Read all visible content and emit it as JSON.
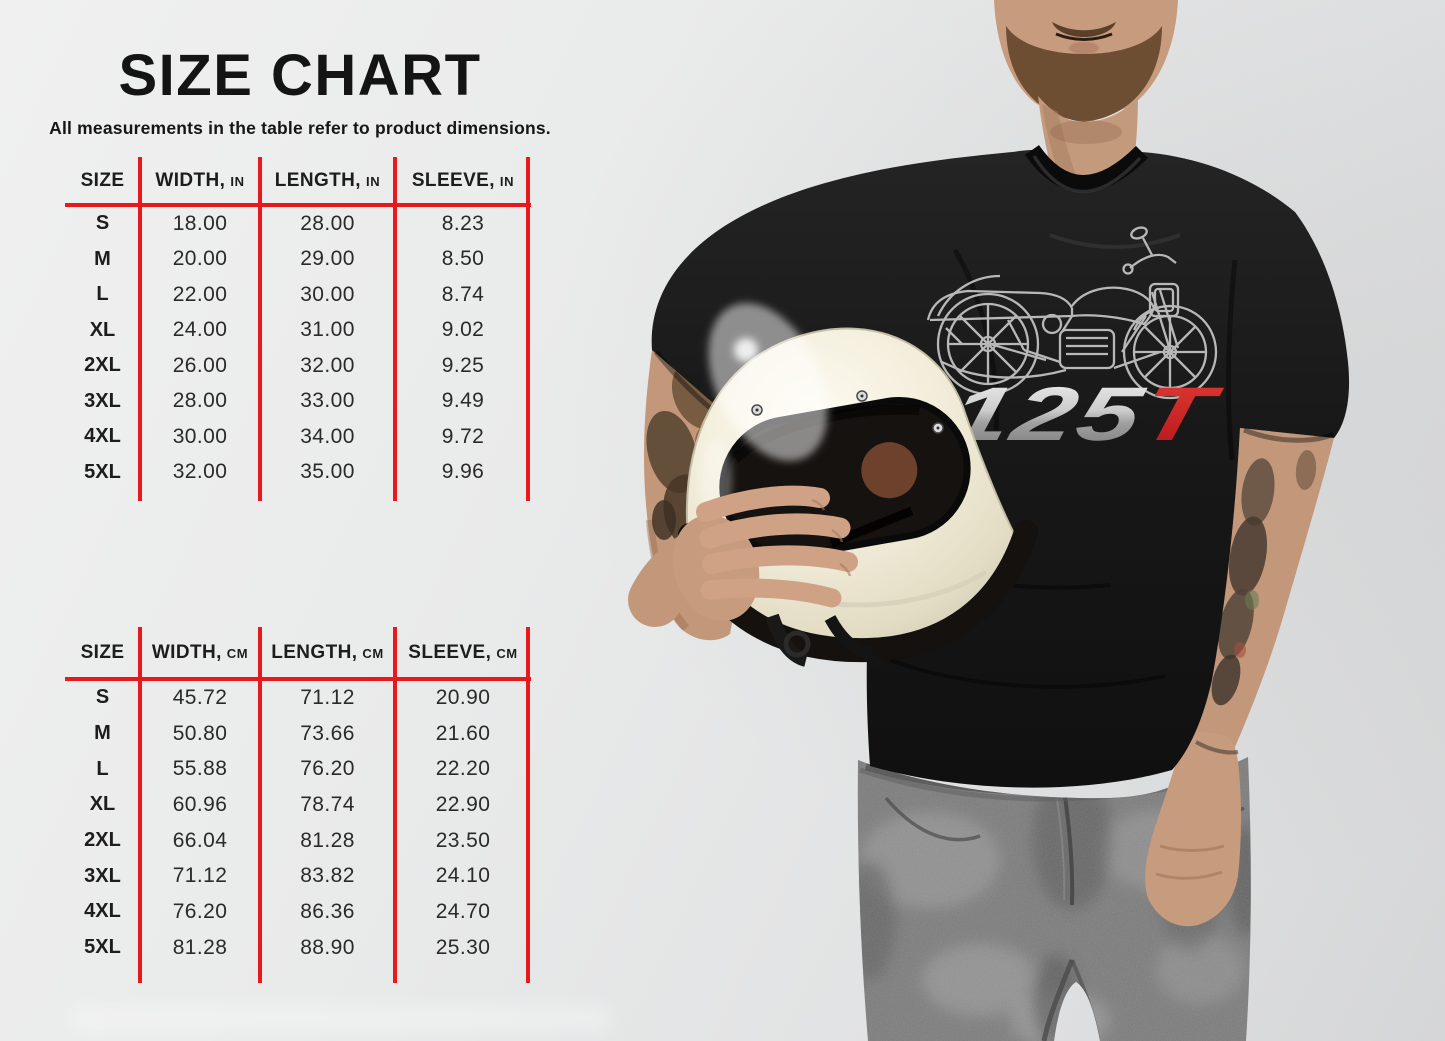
{
  "header": {
    "title": "SIZE CHART",
    "subtitle": "All measurements in the table refer to product dimensions."
  },
  "colors": {
    "accent_red": "#e8191d",
    "background": "#e7e8e8",
    "text": "#1d1d1d",
    "shirt_black": "#1a1a1a",
    "helmet_cream": "#f1ecd9",
    "graphic_silver": "#d8d8d8",
    "graphic_red": "#d41f26"
  },
  "tables": [
    {
      "name": "inches",
      "columns": [
        {
          "label": "SIZE",
          "unit": ""
        },
        {
          "label": "WIDTH,",
          "unit": "IN"
        },
        {
          "label": "LENGTH,",
          "unit": "IN"
        },
        {
          "label": "SLEEVE,",
          "unit": "IN"
        }
      ],
      "rows": [
        [
          "S",
          "18.00",
          "28.00",
          "8.23"
        ],
        [
          "M",
          "20.00",
          "29.00",
          "8.50"
        ],
        [
          "L",
          "22.00",
          "30.00",
          "8.74"
        ],
        [
          "XL",
          "24.00",
          "31.00",
          "9.02"
        ],
        [
          "2XL",
          "26.00",
          "32.00",
          "9.25"
        ],
        [
          "3XL",
          "28.00",
          "33.00",
          "9.49"
        ],
        [
          "4XL",
          "30.00",
          "34.00",
          "9.72"
        ],
        [
          "5XL",
          "32.00",
          "35.00",
          "9.96"
        ]
      ]
    },
    {
      "name": "centimeters",
      "columns": [
        {
          "label": "SIZE",
          "unit": ""
        },
        {
          "label": "WIDTH,",
          "unit": "CM"
        },
        {
          "label": "LENGTH,",
          "unit": "CM"
        },
        {
          "label": "SLEEVE,",
          "unit": "CM"
        }
      ],
      "rows": [
        [
          "S",
          "45.72",
          "71.12",
          "20.90"
        ],
        [
          "M",
          "50.80",
          "73.66",
          "21.60"
        ],
        [
          "L",
          "55.88",
          "76.20",
          "22.20"
        ],
        [
          "XL",
          "60.96",
          "78.74",
          "22.90"
        ],
        [
          "2XL",
          "66.04",
          "81.28",
          "23.50"
        ],
        [
          "3XL",
          "71.12",
          "83.82",
          "24.10"
        ],
        [
          "4XL",
          "76.20",
          "86.36",
          "24.70"
        ],
        [
          "5XL",
          "81.28",
          "88.90",
          "25.30"
        ]
      ]
    }
  ],
  "photo": {
    "shirt_graphic_text": "125",
    "shirt_graphic_text_accent": "T"
  },
  "chart_data": [
    {
      "type": "table",
      "title": "SIZE CHART",
      "subtitle": "All measurements in the table refer to product dimensions.",
      "unit": "inches",
      "columns": [
        "SIZE",
        "WIDTH, IN",
        "LENGTH, IN",
        "SLEEVE, IN"
      ],
      "rows": [
        [
          "S",
          18.0,
          28.0,
          8.23
        ],
        [
          "M",
          20.0,
          29.0,
          8.5
        ],
        [
          "L",
          22.0,
          30.0,
          8.74
        ],
        [
          "XL",
          24.0,
          31.0,
          9.02
        ],
        [
          "2XL",
          26.0,
          32.0,
          9.25
        ],
        [
          "3XL",
          28.0,
          33.0,
          9.49
        ],
        [
          "4XL",
          30.0,
          34.0,
          9.72
        ],
        [
          "5XL",
          32.0,
          35.0,
          9.96
        ]
      ]
    },
    {
      "type": "table",
      "title": "SIZE CHART",
      "unit": "centimeters",
      "columns": [
        "SIZE",
        "WIDTH, CM",
        "LENGTH, CM",
        "SLEEVE, CM"
      ],
      "rows": [
        [
          "S",
          45.72,
          71.12,
          20.9
        ],
        [
          "M",
          50.8,
          73.66,
          21.6
        ],
        [
          "L",
          55.88,
          76.2,
          22.2
        ],
        [
          "XL",
          60.96,
          78.74,
          22.9
        ],
        [
          "2XL",
          66.04,
          81.28,
          23.5
        ],
        [
          "3XL",
          71.12,
          83.82,
          24.1
        ],
        [
          "4XL",
          76.2,
          86.36,
          24.7
        ],
        [
          "5XL",
          81.28,
          88.9,
          25.3
        ]
      ]
    }
  ]
}
